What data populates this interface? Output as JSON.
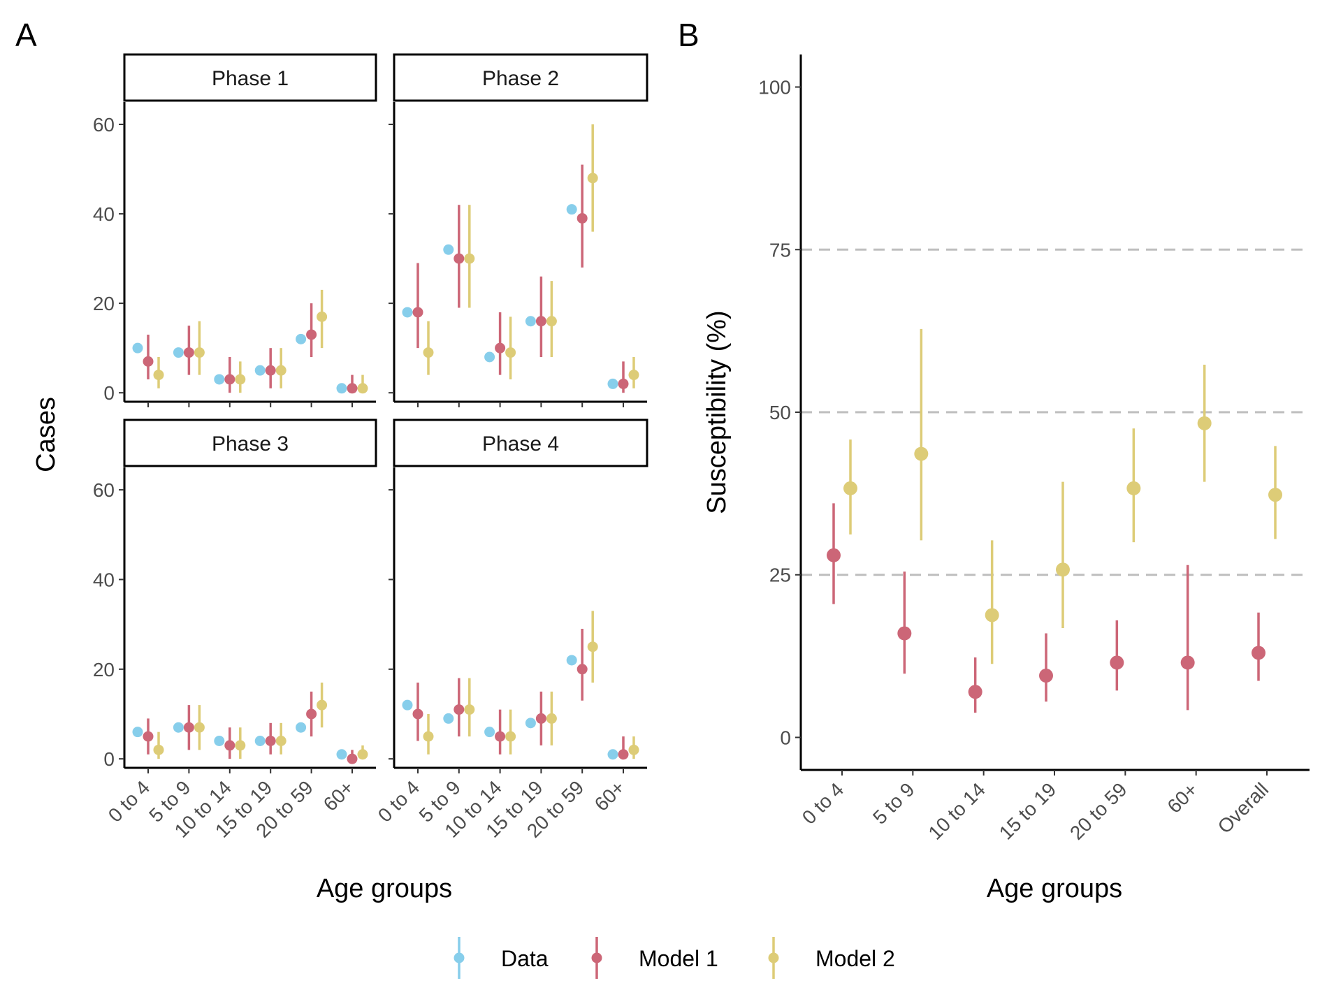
{
  "colors": {
    "Data": "#87CEEB",
    "Model 1": "#CC6677",
    "Model 2": "#DDCC77",
    "axis": "#000000",
    "grid": "#BEBEBE"
  },
  "panel_labels": [
    "A",
    "B"
  ],
  "legend": {
    "entries": [
      "Data",
      "Model 1",
      "Model 2"
    ]
  },
  "chart_data": [
    {
      "type": "scatter",
      "panel": "A",
      "xlabel": "Age groups",
      "ylabel": "Cases",
      "ylim": [
        -2,
        65
      ],
      "yticks": [
        "0",
        "20",
        "40",
        "60"
      ],
      "ytick_values": [
        0,
        20,
        40,
        60
      ],
      "categories": [
        "0 to 4",
        "5 to 9",
        "10 to 14",
        "15 to 19",
        "20 to 59",
        "60+"
      ],
      "facets": [
        {
          "strip": "Phase 1",
          "series": [
            {
              "name": "Data",
              "values": [
                10,
                9,
                3,
                5,
                12,
                1
              ]
            },
            {
              "name": "Model 1",
              "values": [
                7,
                9,
                3,
                5,
                13,
                1
              ],
              "lower": [
                3,
                4,
                0,
                1,
                8,
                0
              ],
              "upper": [
                13,
                15,
                8,
                10,
                20,
                4
              ]
            },
            {
              "name": "Model 2",
              "values": [
                4,
                9,
                3,
                5,
                17,
                1
              ],
              "lower": [
                1,
                4,
                0,
                1,
                10,
                0
              ],
              "upper": [
                8,
                16,
                7,
                10,
                23,
                4
              ]
            }
          ]
        },
        {
          "strip": "Phase 2",
          "series": [
            {
              "name": "Data",
              "values": [
                18,
                32,
                8,
                16,
                41,
                2
              ]
            },
            {
              "name": "Model 1",
              "values": [
                18,
                30,
                10,
                16,
                39,
                2
              ],
              "lower": [
                10,
                19,
                4,
                8,
                28,
                0
              ],
              "upper": [
                29,
                42,
                18,
                26,
                51,
                7
              ]
            },
            {
              "name": "Model 2",
              "values": [
                9,
                30,
                9,
                16,
                48,
                4
              ],
              "lower": [
                4,
                19,
                3,
                8,
                36,
                1
              ],
              "upper": [
                16,
                42,
                17,
                25,
                60,
                8
              ]
            }
          ]
        },
        {
          "strip": "Phase 3",
          "series": [
            {
              "name": "Data",
              "values": [
                6,
                7,
                4,
                4,
                7,
                1
              ]
            },
            {
              "name": "Model 1",
              "values": [
                5,
                7,
                3,
                4,
                10,
                0
              ],
              "lower": [
                1,
                2,
                0,
                1,
                5,
                0
              ],
              "upper": [
                9,
                12,
                7,
                8,
                15,
                2
              ]
            },
            {
              "name": "Model 2",
              "values": [
                2,
                7,
                3,
                4,
                12,
                1
              ],
              "lower": [
                0,
                2,
                0,
                1,
                7,
                0
              ],
              "upper": [
                6,
                12,
                7,
                8,
                17,
                3
              ]
            }
          ]
        },
        {
          "strip": "Phase 4",
          "series": [
            {
              "name": "Data",
              "values": [
                12,
                9,
                6,
                8,
                22,
                1
              ]
            },
            {
              "name": "Model 1",
              "values": [
                10,
                11,
                5,
                9,
                20,
                1
              ],
              "lower": [
                4,
                5,
                1,
                3,
                13,
                0
              ],
              "upper": [
                17,
                18,
                11,
                15,
                29,
                5
              ]
            },
            {
              "name": "Model 2",
              "values": [
                5,
                11,
                5,
                9,
                25,
                2
              ],
              "lower": [
                1,
                5,
                1,
                3,
                17,
                0
              ],
              "upper": [
                10,
                18,
                11,
                15,
                33,
                5
              ]
            }
          ]
        }
      ]
    },
    {
      "type": "scatter",
      "panel": "B",
      "xlabel": "Age groups",
      "ylabel": "Susceptibility (%)",
      "ylim": [
        -5,
        105
      ],
      "yticks": [
        "0",
        "25",
        "50",
        "75",
        "100"
      ],
      "ytick_values": [
        0,
        25,
        50,
        75,
        100
      ],
      "gridlines": [
        25,
        50,
        75
      ],
      "categories": [
        "0 to 4",
        "5 to 9",
        "10 to 14",
        "15 to 19",
        "20 to 59",
        "60+",
        "Overall"
      ],
      "series": [
        {
          "name": "Model 1",
          "values": [
            28,
            16,
            7,
            9.5,
            11.5,
            11.5,
            13
          ],
          "lower": [
            20.5,
            9.8,
            3.8,
            5.5,
            7.2,
            4.2,
            8.7
          ],
          "upper": [
            36,
            25.5,
            12.3,
            16,
            18,
            26.5,
            19.2
          ]
        },
        {
          "name": "Model 2",
          "values": [
            38.3,
            43.6,
            18.8,
            25.8,
            38.3,
            48.3,
            37.3
          ],
          "lower": [
            31.2,
            30.3,
            11.3,
            16.8,
            30,
            39.3,
            30.5
          ],
          "upper": [
            45.8,
            62.8,
            30.3,
            39.3,
            47.5,
            57.3,
            44.8
          ]
        }
      ]
    }
  ]
}
